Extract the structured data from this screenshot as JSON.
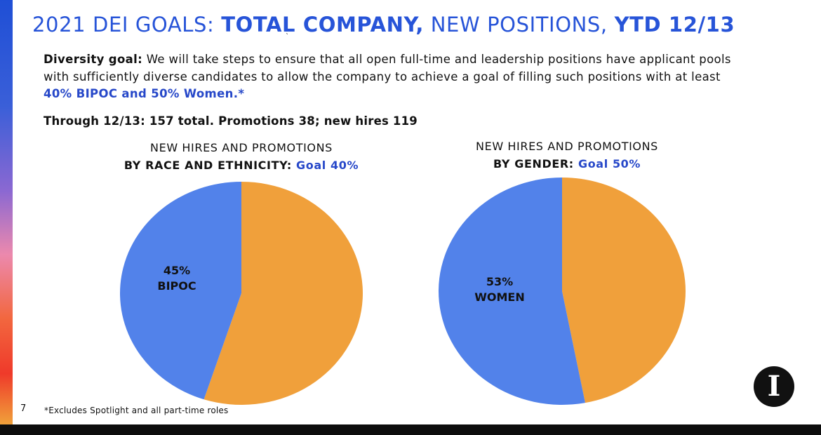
{
  "slide": {
    "title_parts": [
      "2021 DEI GOALS: ",
      "TOTAL COMPANY,",
      " NEW POSITIONS, ",
      "YTD 12/13"
    ],
    "tiny_mark": "ˋ",
    "goal_lead": "Diversity goal:",
    "goal_body": " We will take steps to ensure that all open full-time and leadership positions have applicant pools with sufficiently diverse candidates to allow the company to achieve a goal of filling such positions with at least ",
    "goal_accent": "40% BIPOC and 50% Women.*",
    "through_text": "Through 12/13: 157 total. Promotions 38; new hires 119",
    "footnote": "*Excludes Spotlight and all part-time roles",
    "page_number": "7",
    "logo_letter": "I"
  },
  "colors": {
    "title_blue": "#2754d8",
    "accent_blue": "#2748c9",
    "slice_blue": "#5282ea",
    "slice_orange": "#f0a03b"
  },
  "chart_data": [
    {
      "type": "pie",
      "title_line1": "NEW HIRES AND PROMOTIONS",
      "title_line2": "BY RACE AND ETHNICITY:",
      "goal_label": " Goal 40%",
      "slices": [
        {
          "label": "BIPOC",
          "value_label": "45%",
          "value": 45,
          "color": "#5282ea"
        },
        {
          "label": "",
          "value_label": "",
          "value": 55,
          "color": "#f0a03b"
        }
      ]
    },
    {
      "type": "pie",
      "title_line1": "NEW HIRES AND PROMOTIONS",
      "title_line2": "BY GENDER:",
      "goal_label": " Goal 50%",
      "slices": [
        {
          "label": "WOMEN",
          "value_label": "53%",
          "value": 53,
          "color": "#5282ea"
        },
        {
          "label": "",
          "value_label": "",
          "value": 47,
          "color": "#f0a03b"
        }
      ]
    }
  ]
}
